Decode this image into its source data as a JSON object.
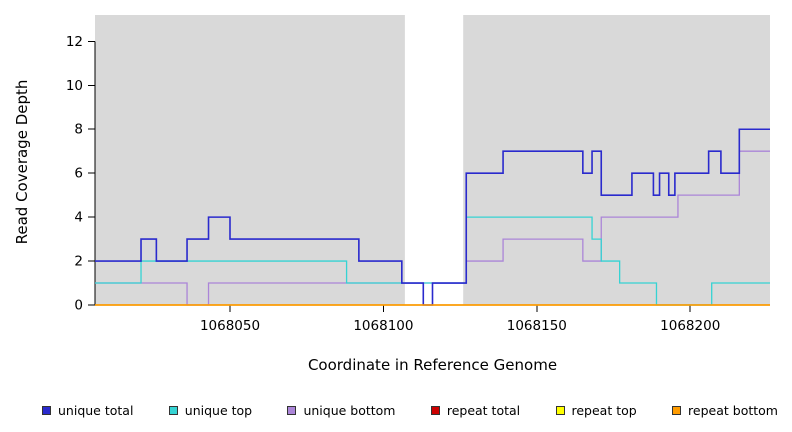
{
  "figure": {
    "xlabel": "Coordinate in Reference Genome",
    "ylabel": "Read Coverage Depth"
  },
  "chart_data": {
    "type": "line",
    "subtype": "step-after-coverage",
    "title": "",
    "xlabel": "Coordinate in Reference Genome",
    "ylabel": "Read Coverage Depth",
    "xlim": [
      1068006,
      1068226
    ],
    "ylim": [
      0,
      13.2
    ],
    "x_ticks": [
      1068050,
      1068100,
      1068150,
      1068200
    ],
    "y_ticks": [
      0,
      2,
      4,
      6,
      8,
      10,
      12
    ],
    "grid": false,
    "plot_bg": "#ffffff",
    "background_regions": [
      {
        "x0": 1068006,
        "x1": 1068107,
        "color": "#d9d9d9"
      },
      {
        "x0": 1068126,
        "x1": 1068226,
        "color": "#d9d9d9"
      }
    ],
    "series": [
      {
        "name": "repeat total",
        "color": "#cc0000",
        "width": 1.2,
        "points": [
          [
            1068006,
            0
          ],
          [
            1068226,
            0
          ]
        ]
      },
      {
        "name": "repeat top",
        "color": "#ffff00",
        "width": 1.2,
        "points": [
          [
            1068006,
            0
          ],
          [
            1068226,
            0
          ]
        ]
      },
      {
        "name": "unique bottom",
        "color": "#ab85d8",
        "width": 1.3,
        "points": [
          [
            1068006,
            1
          ],
          [
            1068036,
            0
          ],
          [
            1068043,
            1
          ],
          [
            1068127,
            2
          ],
          [
            1068139,
            3
          ],
          [
            1068165,
            2
          ],
          [
            1068171,
            4
          ],
          [
            1068196,
            5
          ],
          [
            1068216,
            7
          ],
          [
            1068226,
            7
          ]
        ]
      },
      {
        "name": "unique top",
        "color": "#35d3d3",
        "width": 1.3,
        "points": [
          [
            1068006,
            1
          ],
          [
            1068021,
            2
          ],
          [
            1068088,
            1
          ],
          [
            1068127,
            4
          ],
          [
            1068168,
            3
          ],
          [
            1068171,
            2
          ],
          [
            1068177,
            1
          ],
          [
            1068189,
            0
          ],
          [
            1068207,
            1
          ],
          [
            1068226,
            1
          ]
        ]
      },
      {
        "name": "unique total",
        "color": "#2a2acd",
        "width": 1.6,
        "points": [
          [
            1068006,
            2
          ],
          [
            1068021,
            3
          ],
          [
            1068026,
            2
          ],
          [
            1068036,
            3
          ],
          [
            1068043,
            4
          ],
          [
            1068050,
            3
          ],
          [
            1068092,
            2
          ],
          [
            1068106,
            1
          ],
          [
            1068113,
            0
          ],
          [
            1068116,
            1
          ],
          [
            1068127,
            6
          ],
          [
            1068139,
            7
          ],
          [
            1068165,
            6
          ],
          [
            1068168,
            7
          ],
          [
            1068171,
            5
          ],
          [
            1068181,
            6
          ],
          [
            1068188,
            5
          ],
          [
            1068190,
            6
          ],
          [
            1068193,
            5
          ],
          [
            1068195,
            6
          ],
          [
            1068206,
            7
          ],
          [
            1068210,
            6
          ],
          [
            1068216,
            8
          ],
          [
            1068226,
            8
          ]
        ]
      },
      {
        "name": "repeat bottom",
        "color": "#ff9c00",
        "width": 1.5,
        "points": [
          [
            1068006,
            0
          ],
          [
            1068226,
            0
          ]
        ]
      }
    ],
    "legend": [
      {
        "label": "unique total",
        "color": "#2a2acd"
      },
      {
        "label": "unique top",
        "color": "#35d3d3"
      },
      {
        "label": "unique bottom",
        "color": "#ab85d8"
      },
      {
        "label": "repeat total",
        "color": "#cc0000"
      },
      {
        "label": "repeat top",
        "color": "#ffff00"
      },
      {
        "label": "repeat bottom",
        "color": "#ff9c00"
      }
    ],
    "legend_position": "bottom"
  }
}
